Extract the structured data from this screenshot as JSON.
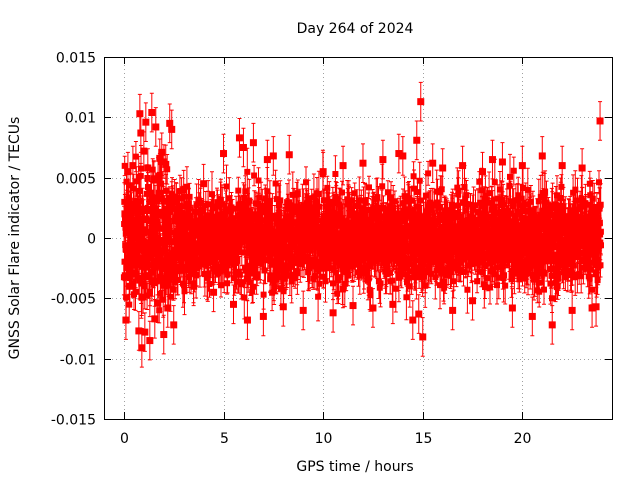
{
  "chart_data": {
    "type": "scatter",
    "title": "Day 264 of 2024",
    "xlabel": "GPS time / hours",
    "ylabel": "GNSS Solar Flare indicator / TECUs",
    "xlim": [
      -1,
      24.5
    ],
    "ylim": [
      -0.015,
      0.015
    ],
    "xticks": [
      0,
      5,
      10,
      15,
      20
    ],
    "xtick_labels": [
      "0",
      "5",
      "10",
      "15",
      "20"
    ],
    "yticks": [
      -0.015,
      -0.01,
      -0.005,
      0,
      0.005,
      0.01,
      0.015
    ],
    "ytick_labels": [
      "-0.015",
      "-0.01",
      "-0.005",
      "0",
      "0.005",
      "0.01",
      "0.015"
    ],
    "grid": true,
    "legend": "none",
    "marker_color": "#ff0000",
    "error_bars": true,
    "series": [
      {
        "x": [
          0.05,
          0.1,
          0.2,
          0.3,
          0.45,
          0.6,
          0.75,
          0.8,
          0.85,
          0.9,
          1.0,
          1.05,
          1.1,
          1.2,
          1.3,
          1.4,
          1.5,
          1.55,
          1.6,
          1.7,
          1.8,
          1.9,
          2.0,
          2.1,
          2.2,
          2.3,
          2.4,
          2.5,
          3.0,
          3.5,
          4.0,
          4.5,
          5.0,
          5.5,
          5.8,
          6.0,
          6.2,
          6.5,
          7.0,
          7.2,
          7.5,
          8.0,
          8.3,
          9.0,
          10.0,
          10.5,
          11.0,
          11.5,
          12.0,
          12.5,
          13.0,
          13.5,
          13.8,
          14.0,
          14.5,
          14.7,
          14.8,
          14.9,
          15.0,
          15.5,
          16.0,
          16.5,
          17.0,
          17.5,
          18.0,
          18.5,
          19.0,
          19.5,
          20.0,
          20.5,
          21.0,
          21.5,
          22.0,
          22.5,
          23.0,
          23.5,
          23.7,
          23.9
        ],
        "y": [
          0.002,
          -0.0068,
          0.0055,
          -0.004,
          0.006,
          -0.003,
          -0.0077,
          0.0103,
          0.0087,
          -0.0091,
          0.0072,
          -0.0078,
          0.0096,
          0.0058,
          -0.0085,
          0.0104,
          0.0048,
          -0.0067,
          0.0092,
          -0.0054,
          0.0066,
          0.0071,
          -0.008,
          0.0061,
          -0.0058,
          0.0095,
          0.009,
          -0.0072,
          0.004,
          -0.004,
          0.0045,
          -0.0045,
          0.007,
          -0.0055,
          0.0083,
          0.0075,
          -0.0068,
          0.0079,
          -0.0065,
          0.0065,
          0.0068,
          -0.0057,
          0.0069,
          -0.006,
          0.0055,
          -0.0062,
          0.006,
          -0.0056,
          0.0062,
          -0.0058,
          0.0065,
          -0.0055,
          0.007,
          0.0068,
          -0.0068,
          0.0081,
          -0.0063,
          0.0113,
          -0.0082,
          0.0062,
          0.0058,
          -0.006,
          0.006,
          -0.0052,
          0.0055,
          0.0065,
          0.0063,
          -0.0058,
          0.006,
          -0.0065,
          0.0068,
          -0.0072,
          0.006,
          -0.006,
          0.0058,
          -0.0058,
          -0.0057,
          0.0097
        ]
      }
    ]
  }
}
